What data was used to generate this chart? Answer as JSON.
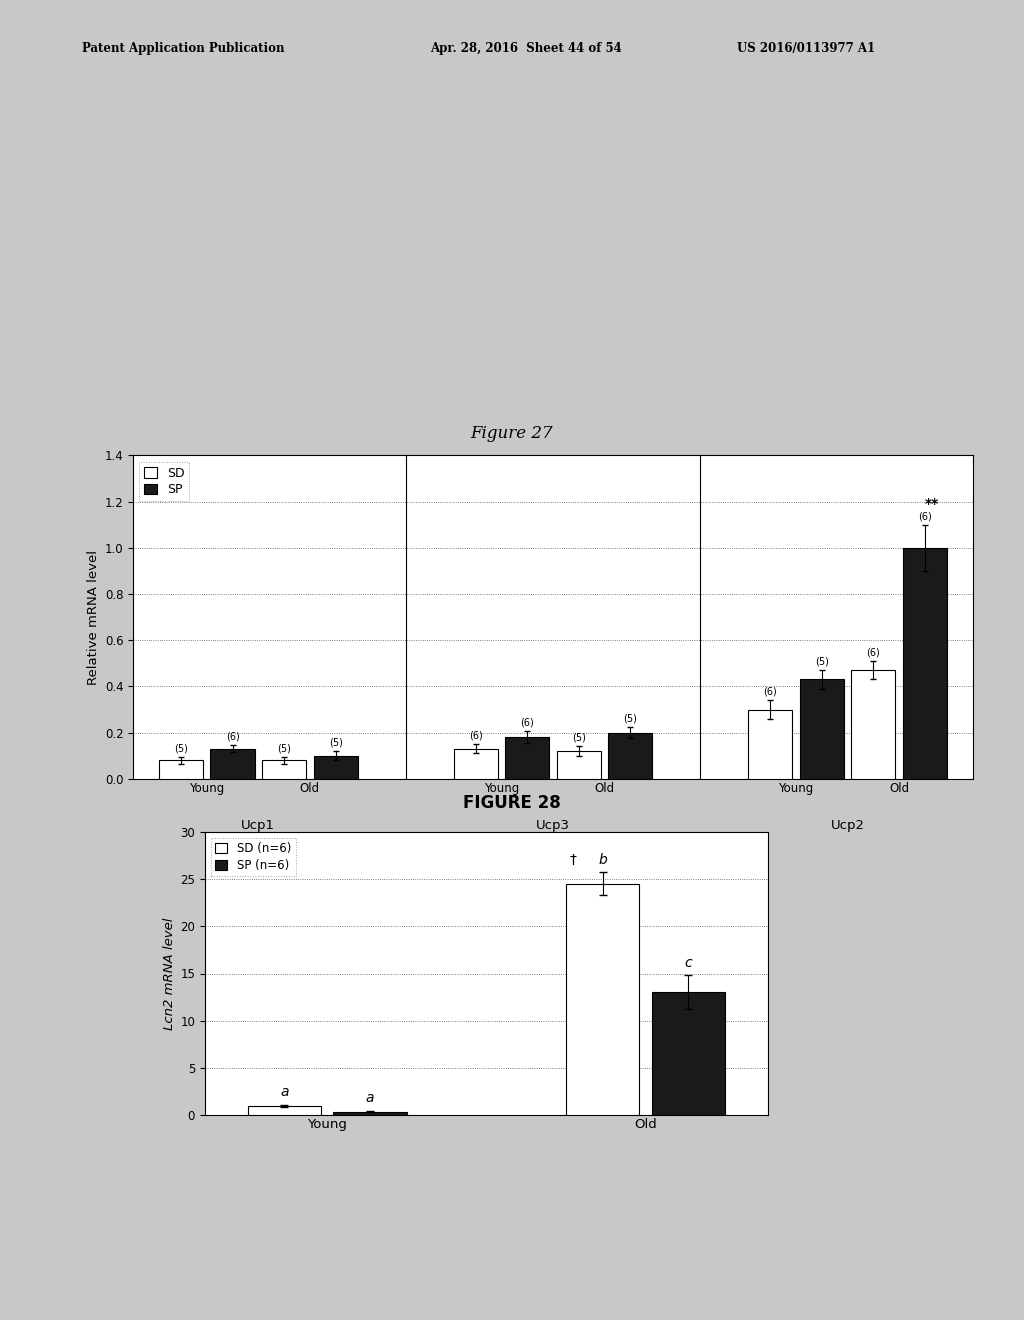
{
  "fig27_title": "Figure 27",
  "fig28_title": "FIGURE 28",
  "header_left": "Patent Application Publication",
  "header_mid": "Apr. 28, 2016  Sheet 44 of 54",
  "header_right": "US 2016/0113977 A1",
  "fig27": {
    "ylabel": "Relative mRNA level",
    "ylim": [
      0.0,
      1.4
    ],
    "yticks": [
      0.0,
      0.2,
      0.4,
      0.6,
      0.8,
      1.0,
      1.2,
      1.4
    ],
    "groups": [
      "Ucp1",
      "Ucp3",
      "Ucp2"
    ],
    "subgroups": [
      "Young",
      "Old"
    ],
    "sd_values": [
      [
        0.08,
        0.08
      ],
      [
        0.13,
        0.12
      ],
      [
        0.3,
        0.47
      ]
    ],
    "sp_values": [
      [
        0.13,
        0.1
      ],
      [
        0.18,
        0.2
      ],
      [
        0.43,
        1.0
      ]
    ],
    "sd_errors": [
      [
        0.015,
        0.015
      ],
      [
        0.02,
        0.02
      ],
      [
        0.04,
        0.04
      ]
    ],
    "sp_errors": [
      [
        0.015,
        0.02
      ],
      [
        0.025,
        0.025
      ],
      [
        0.04,
        0.1
      ]
    ],
    "n_labels_sd": [
      [
        "(5)",
        "(5)"
      ],
      [
        "(6)",
        "(5)"
      ],
      [
        "(6)",
        "(6)"
      ]
    ],
    "n_labels_sp": [
      [
        "(6)",
        "(5)"
      ],
      [
        "(6)",
        "(5)"
      ],
      [
        "(5)",
        "(6)"
      ]
    ],
    "sd_color": "#ffffff",
    "sp_color": "#1a1a1a",
    "legend_sd": "SD",
    "legend_sp": "SP"
  },
  "fig28": {
    "ylabel": "Lcn2 mRNA level",
    "ylim": [
      0,
      30
    ],
    "yticks": [
      0,
      5,
      10,
      15,
      20,
      25,
      30
    ],
    "groups": [
      "Young",
      "Old"
    ],
    "sd_values": [
      1.0,
      24.5
    ],
    "sp_values": [
      0.4,
      13.0
    ],
    "sd_errors": [
      0.15,
      1.2
    ],
    "sp_errors": [
      0.08,
      1.8
    ],
    "labels_sd": [
      "a",
      "b"
    ],
    "labels_sp": [
      "a",
      "c"
    ],
    "sd_color": "#ffffff",
    "sp_color": "#1a1a1a",
    "legend_sd": "SD (n=6)",
    "legend_sp": "SP (n=6)"
  },
  "bg_color": "#c8c8c8"
}
